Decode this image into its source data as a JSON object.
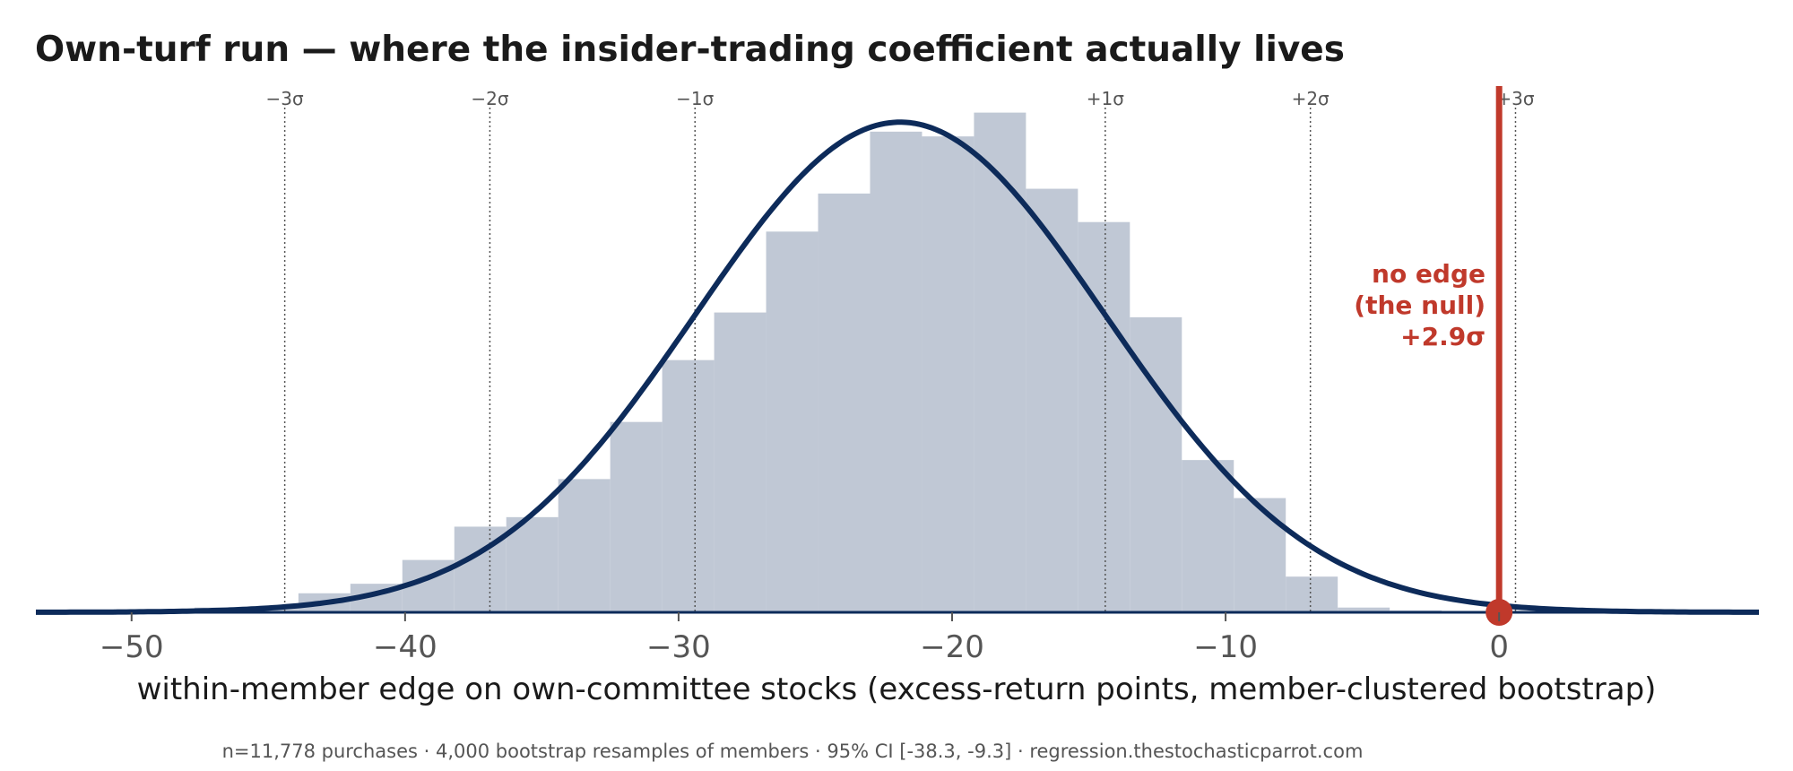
{
  "chart_data": {
    "type": "histogram",
    "title": "Own-turf run — where the insider-trading coefficient actually lives",
    "xlabel": "within-member edge on own-committee stocks  (excess-return points, member-clustered bootstrap)",
    "ylabel": "",
    "xlim": [
      -53.5,
      9.5
    ],
    "x_ticks": [
      -50,
      -40,
      -30,
      -20,
      -10,
      0
    ],
    "x_tick_labels": [
      "−50",
      "−40",
      "−30",
      "−20",
      "−10",
      "0"
    ],
    "grid": false,
    "bin_width": 1.9,
    "bins": [
      {
        "x0": -47.7,
        "x1": -45.8,
        "value": 1
      },
      {
        "x0": -45.8,
        "x1": -43.9,
        "value": 1
      },
      {
        "x0": -43.9,
        "x1": -42.0,
        "value": 4
      },
      {
        "x0": -42.0,
        "x1": -40.1,
        "value": 6
      },
      {
        "x0": -40.1,
        "x1": -38.2,
        "value": 11
      },
      {
        "x0": -38.2,
        "x1": -36.3,
        "value": 18
      },
      {
        "x0": -36.3,
        "x1": -34.4,
        "value": 20
      },
      {
        "x0": -34.4,
        "x1": -32.5,
        "value": 28
      },
      {
        "x0": -32.5,
        "x1": -30.6,
        "value": 40
      },
      {
        "x0": -30.6,
        "x1": -28.7,
        "value": 53
      },
      {
        "x0": -28.7,
        "x1": -26.8,
        "value": 63
      },
      {
        "x0": -26.8,
        "x1": -24.9,
        "value": 80
      },
      {
        "x0": -24.9,
        "x1": -23.0,
        "value": 88
      },
      {
        "x0": -23.0,
        "x1": -21.1,
        "value": 101
      },
      {
        "x0": -21.1,
        "x1": -19.2,
        "value": 100
      },
      {
        "x0": -19.2,
        "x1": -17.3,
        "value": 105
      },
      {
        "x0": -17.3,
        "x1": -15.4,
        "value": 89
      },
      {
        "x0": -15.4,
        "x1": -13.5,
        "value": 82
      },
      {
        "x0": -13.5,
        "x1": -11.6,
        "value": 62
      },
      {
        "x0": -11.6,
        "x1": -9.7,
        "value": 32
      },
      {
        "x0": -9.7,
        "x1": -7.8,
        "value": 24
      },
      {
        "x0": -7.8,
        "x1": -5.9,
        "value": 7.5
      },
      {
        "x0": -5.9,
        "x1": -4.0,
        "value": 1
      },
      {
        "x0": -4.0,
        "x1": -2.1,
        "value": 0.4
      }
    ],
    "ylim": [
      0,
      107
    ],
    "normal_fit": {
      "mean": -21.9,
      "sd": 7.5,
      "peak": 103
    },
    "sigma_lines": [
      {
        "x": -44.4,
        "label": "−3σ"
      },
      {
        "x": -36.9,
        "label": "−2σ"
      },
      {
        "x": -29.4,
        "label": "−1σ"
      },
      {
        "x": -14.4,
        "label": "+1σ"
      },
      {
        "x": -6.9,
        "label": "+2σ"
      },
      {
        "x": 0.6,
        "label": "+3σ"
      }
    ],
    "null_marker": {
      "x": 0,
      "label_lines": [
        "no edge",
        "(the null)",
        "+2.9σ"
      ]
    },
    "footer": "n=11,778 purchases · 4,000 bootstrap resamples of members · 95% CI [-38.3, -9.3] · regression.thestochasticparrot.com",
    "colors": {
      "histogram": "#c0c8d5",
      "curve": "#0d2b5a",
      "null_line": "#c0392b",
      "sigma_line": "#555555",
      "title": "#1a1a1a",
      "axis": "#0d2b5a"
    }
  }
}
